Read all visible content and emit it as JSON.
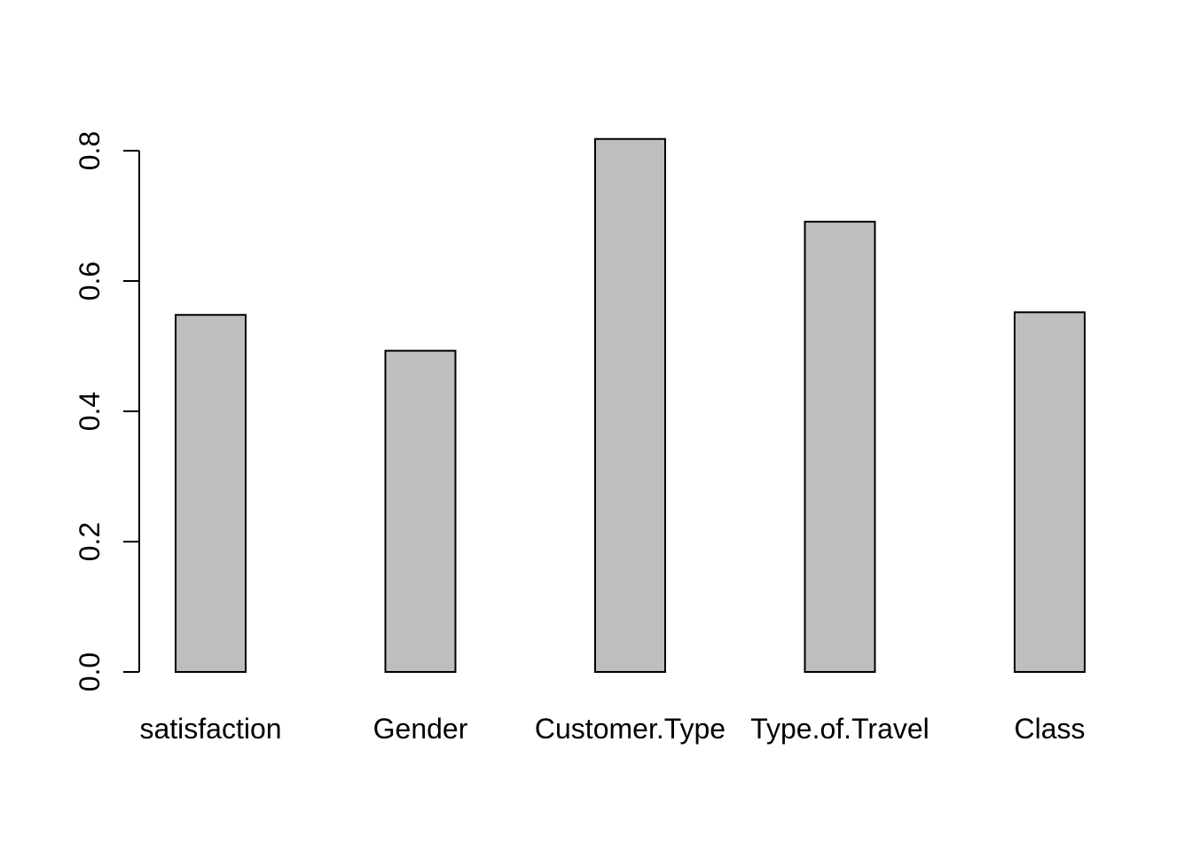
{
  "chart_data": {
    "type": "bar",
    "title": "",
    "xlabel": "",
    "ylabel": "",
    "categories": [
      "satisfaction",
      "Gender",
      "Customer.Type",
      "Type.of.Travel",
      "Class"
    ],
    "values": [
      0.548,
      0.493,
      0.818,
      0.691,
      0.552
    ],
    "ylim": [
      0,
      0.8
    ],
    "yticks": [
      "0.0",
      "0.2",
      "0.4",
      "0.6",
      "0.8"
    ],
    "grid": false,
    "legend": "none",
    "colors": {
      "bar_fill": "#bebebe",
      "bar_stroke": "#000000",
      "axis": "#000000",
      "background": "#ffffff"
    }
  }
}
